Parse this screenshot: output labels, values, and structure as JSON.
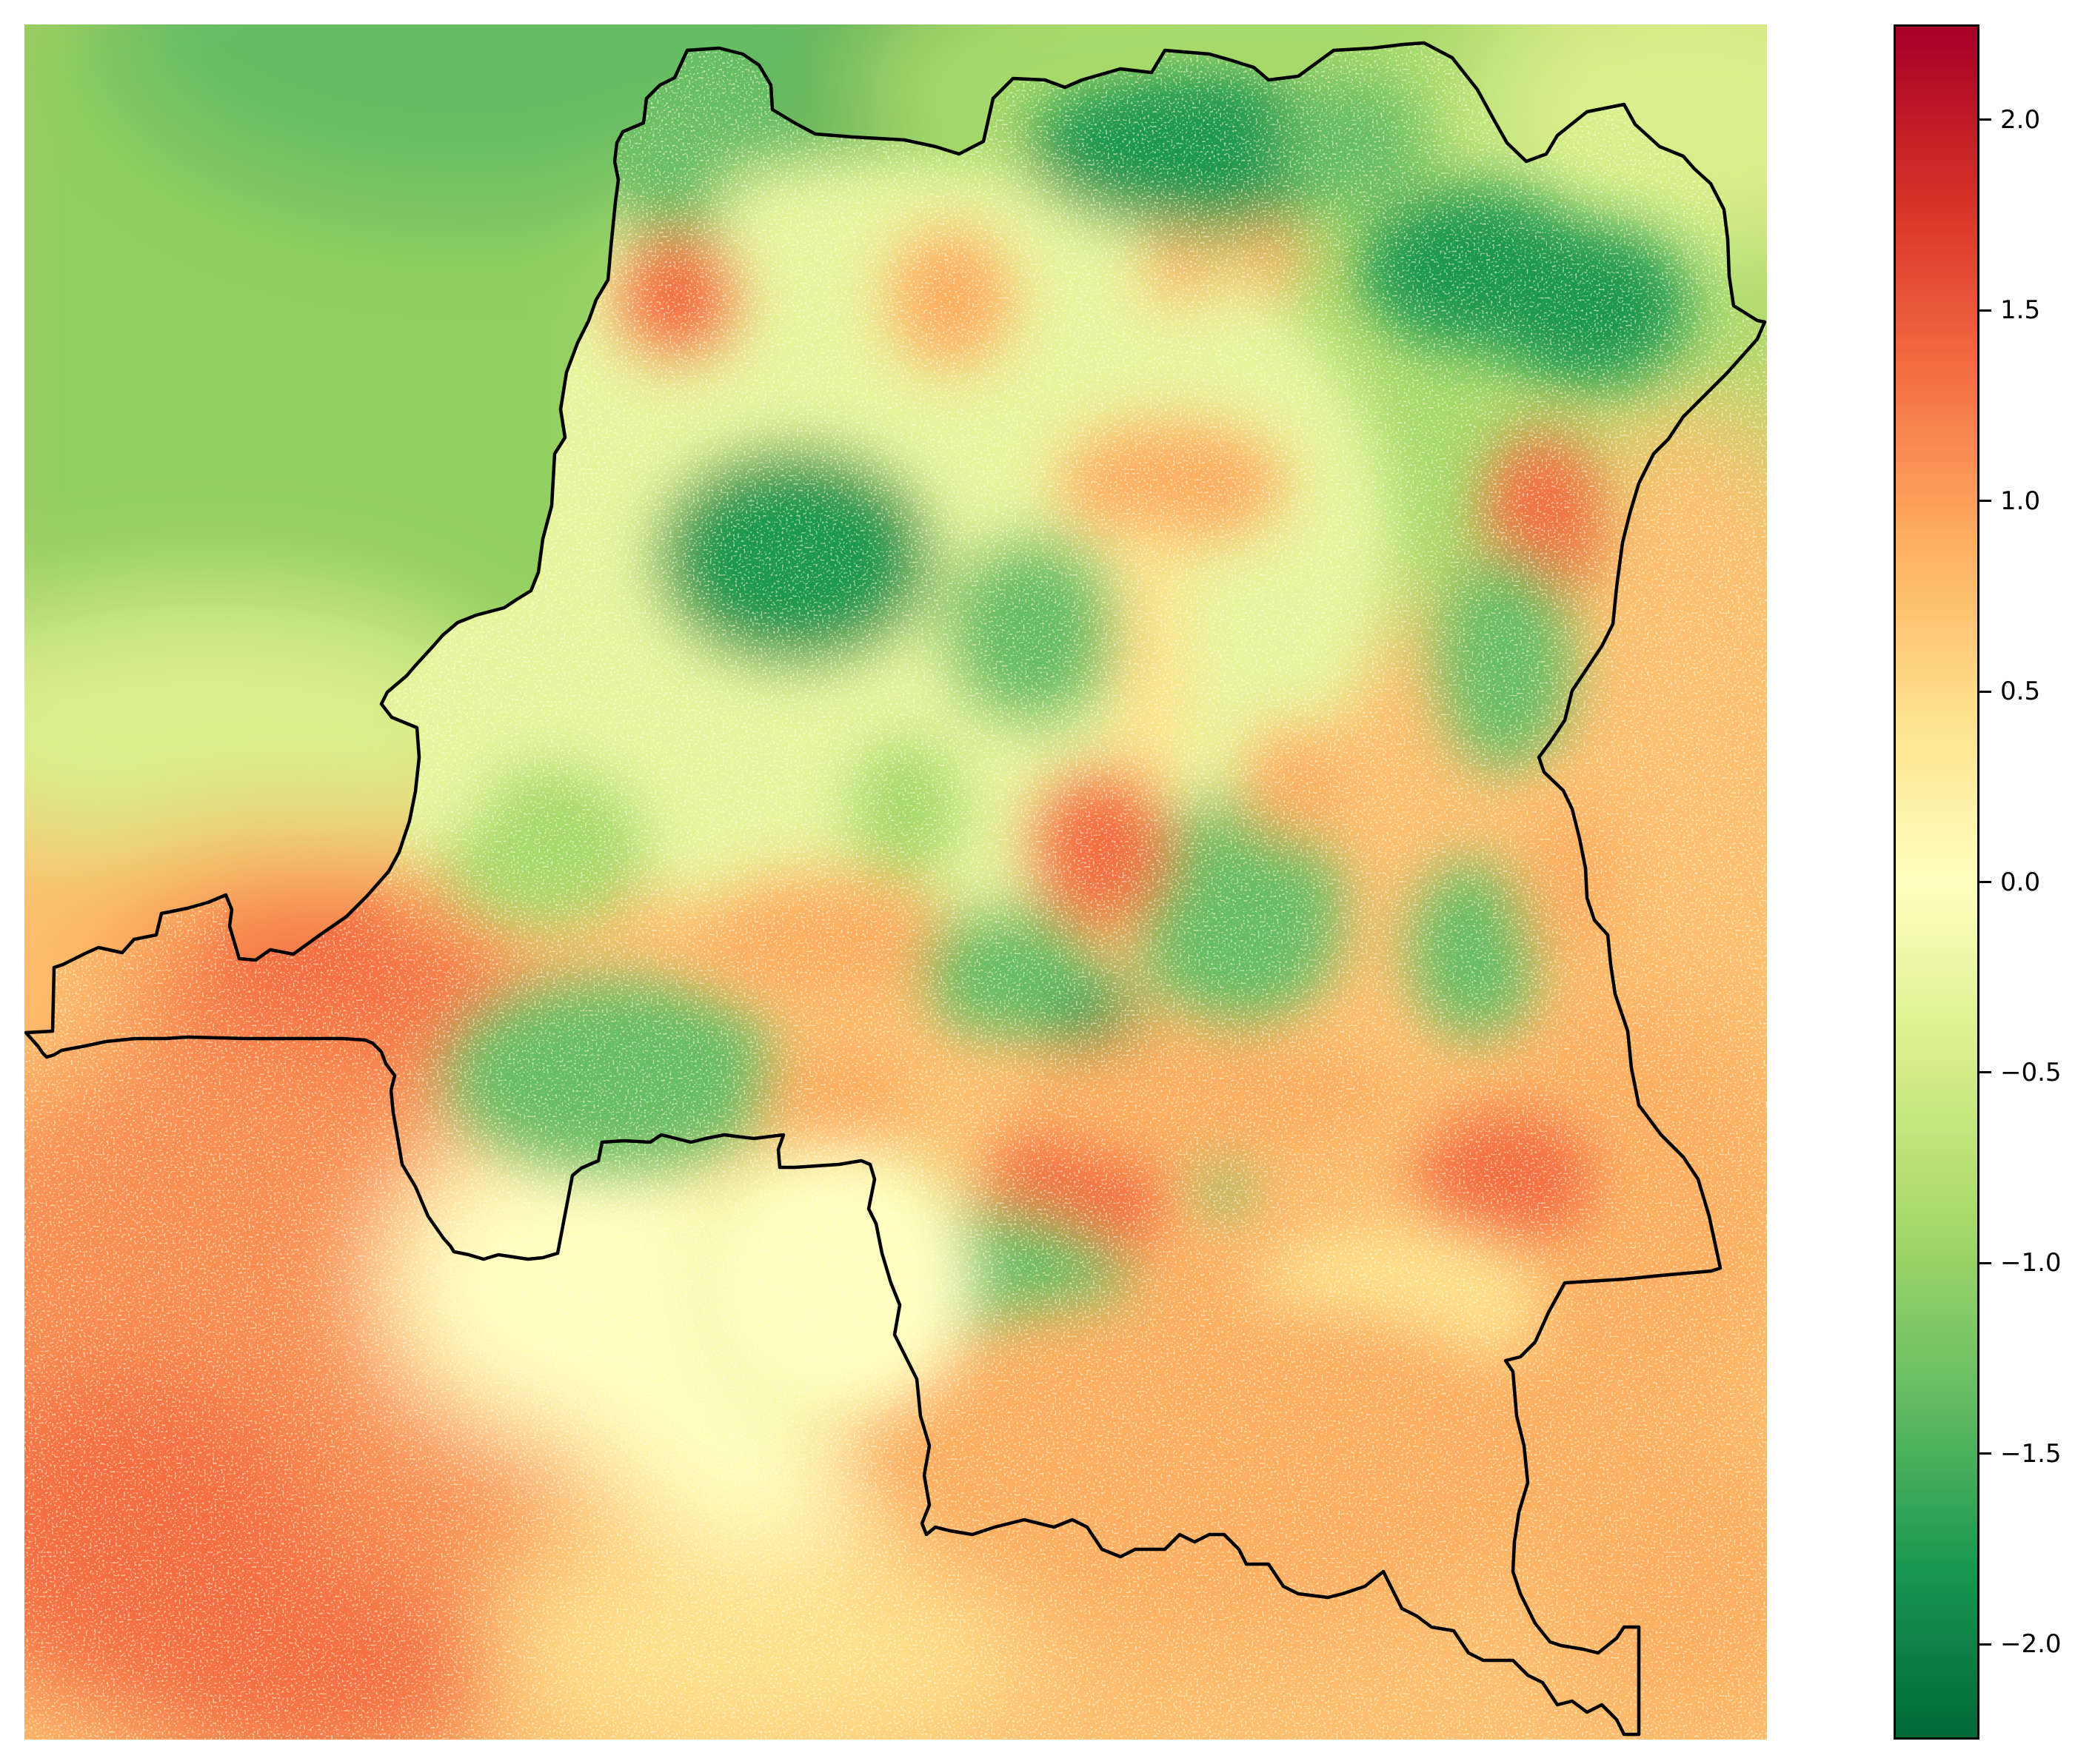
{
  "map": {
    "layer": "raster",
    "region_outline": "country-boundary",
    "colormap": "RdYlGn_r",
    "colors": {
      "low": "#006837",
      "mid": "#ffffbf",
      "high": "#a50026",
      "outline": "#000000"
    }
  },
  "colorbar": {
    "orientation": "vertical",
    "placement": "right",
    "vmin": -2.25,
    "vmax": 2.25,
    "stops": [
      {
        "value": -2.25,
        "color": "#006837"
      },
      {
        "value": -1.8,
        "color": "#1a9850"
      },
      {
        "value": -1.35,
        "color": "#66bd63"
      },
      {
        "value": -0.9,
        "color": "#a6d96a"
      },
      {
        "value": -0.45,
        "color": "#d9ef8b"
      },
      {
        "value": 0.0,
        "color": "#ffffbf"
      },
      {
        "value": 0.45,
        "color": "#fee08b"
      },
      {
        "value": 0.9,
        "color": "#fdae61"
      },
      {
        "value": 1.35,
        "color": "#f46d43"
      },
      {
        "value": 1.8,
        "color": "#d73027"
      },
      {
        "value": 2.25,
        "color": "#a50026"
      }
    ],
    "ticks": [
      {
        "value": 2.0,
        "label": "2.0"
      },
      {
        "value": 1.5,
        "label": "1.5"
      },
      {
        "value": 1.0,
        "label": "1.0"
      },
      {
        "value": 0.5,
        "label": "0.5"
      },
      {
        "value": 0.0,
        "label": "0.0"
      },
      {
        "value": -0.5,
        "label": "−0.5"
      },
      {
        "value": -1.0,
        "label": "−1.0"
      },
      {
        "value": -1.5,
        "label": "−1.5"
      },
      {
        "value": -2.0,
        "label": "−2.0"
      }
    ]
  }
}
